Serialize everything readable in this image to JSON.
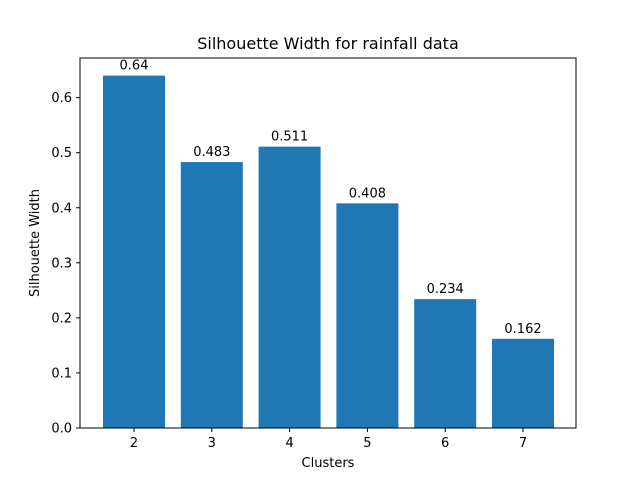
{
  "chart_data": {
    "type": "bar",
    "title": "Silhouette Width for rainfall data",
    "xlabel": "Clusters",
    "ylabel": "Silhouette Width",
    "categories": [
      "2",
      "3",
      "4",
      "5",
      "6",
      "7"
    ],
    "values": [
      0.64,
      0.483,
      0.511,
      0.408,
      0.234,
      0.162
    ],
    "value_labels": [
      "0.64",
      "0.483",
      "0.511",
      "0.408",
      "0.234",
      "0.162"
    ],
    "ylim": [
      0,
      0.672
    ],
    "yticks": [
      0.0,
      0.1,
      0.2,
      0.3,
      0.4,
      0.5,
      0.6
    ],
    "ytick_labels": [
      "0.0",
      "0.1",
      "0.2",
      "0.3",
      "0.4",
      "0.5",
      "0.6"
    ],
    "grid": false,
    "legend": "none",
    "bar_color": "#1f77b4"
  }
}
